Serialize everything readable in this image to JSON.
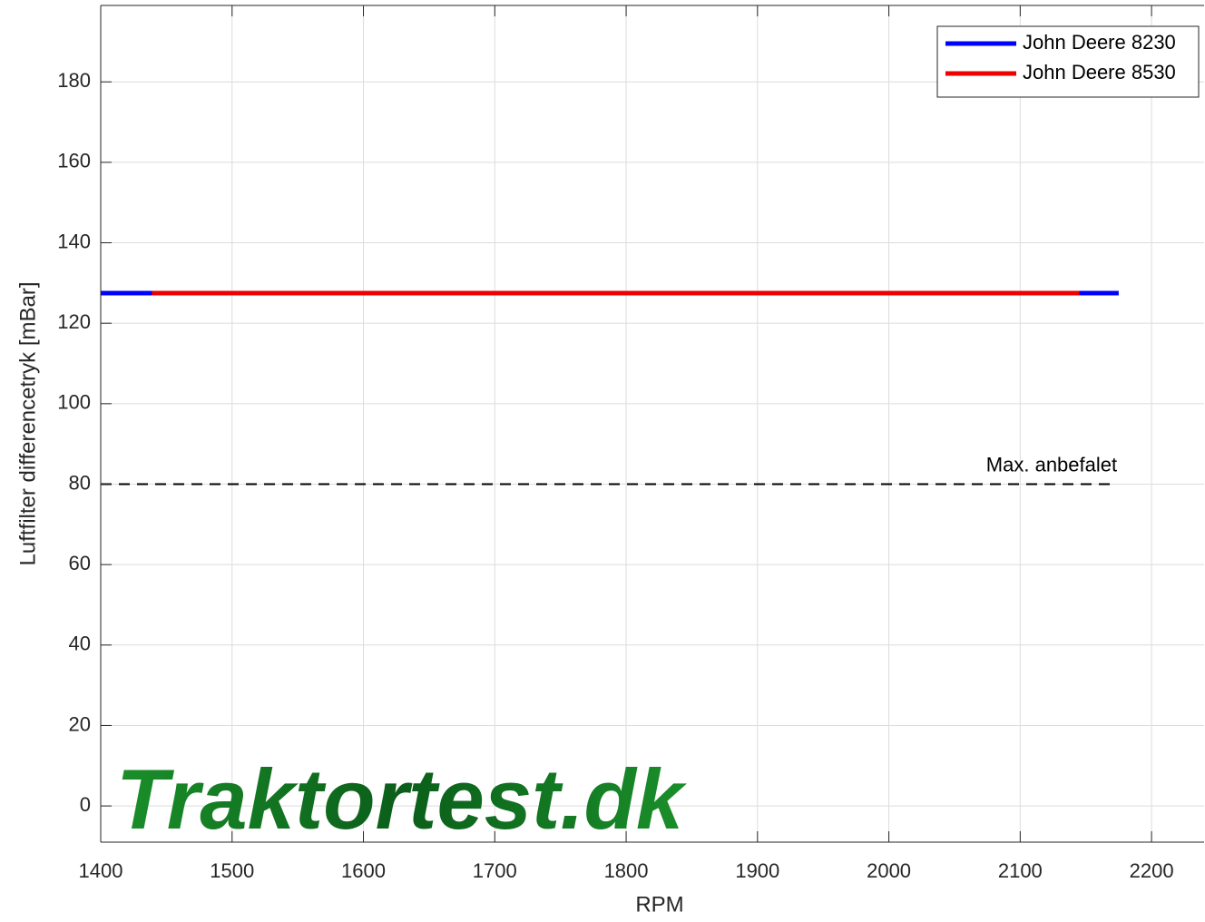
{
  "chart_data": {
    "type": "line",
    "xlabel": "RPM",
    "ylabel": "Luftfilter differencetryk [mBar]",
    "xlim": [
      1400,
      2240
    ],
    "ylim": [
      -9,
      199
    ],
    "xticks": [
      1400,
      1500,
      1600,
      1700,
      1800,
      1900,
      2000,
      2100,
      2200
    ],
    "yticks": [
      0,
      20,
      40,
      60,
      80,
      100,
      120,
      140,
      160,
      180
    ],
    "grid": true,
    "legend": "upper right",
    "series": [
      {
        "name": "John Deere 8230",
        "color": "#0000ff",
        "x": [
          1400,
          2175
        ],
        "values": [
          127.5,
          127.5
        ]
      },
      {
        "name": "John Deere 8530",
        "color": "#ee0000",
        "x": [
          1439,
          2145
        ],
        "values": [
          127.5,
          127.5
        ]
      }
    ],
    "reference_line": {
      "label": "Max. anbefalet",
      "value": 80,
      "x": [
        1400,
        2171
      ],
      "color": "#000000"
    },
    "watermark": "Traktortest.dk"
  }
}
